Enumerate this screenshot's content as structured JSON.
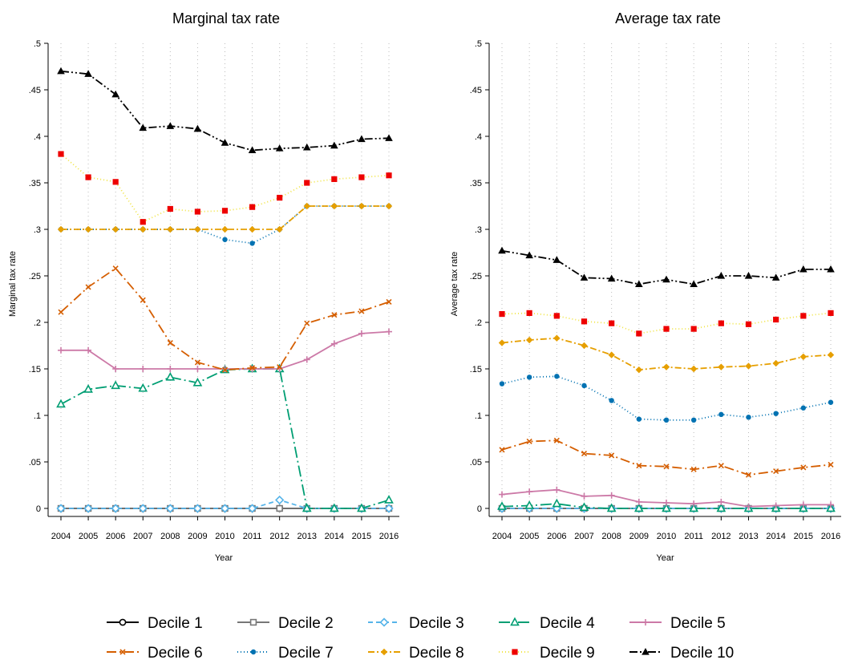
{
  "chart_data": [
    {
      "type": "line",
      "title": "Marginal tax rate",
      "xlabel": "Year",
      "ylabel": "Marginal tax rate",
      "ylim": [
        0,
        0.5
      ],
      "yticks": [
        0,
        0.05,
        0.1,
        0.15,
        0.2,
        0.25,
        0.3,
        0.35,
        0.4,
        0.45,
        0.5
      ],
      "ytick_labels": [
        "0",
        ".05",
        ".1",
        ".15",
        ".2",
        ".25",
        ".3",
        ".35",
        ".4",
        ".45",
        ".5"
      ],
      "x": [
        2004,
        2005,
        2006,
        2007,
        2008,
        2009,
        2010,
        2011,
        2012,
        2013,
        2014,
        2015,
        2016
      ],
      "x_labels": [
        "2004",
        "2005",
        "2006",
        "2007",
        "2008",
        "2009",
        "2010",
        "2011",
        "2012",
        "2013",
        "2014",
        "2015",
        "2016"
      ],
      "grid": "vertical dotted",
      "series": [
        {
          "name": "Decile 1",
          "values": [
            0,
            0,
            0,
            0,
            0,
            0,
            0,
            0,
            0,
            0,
            0,
            0,
            0
          ]
        },
        {
          "name": "Decile 2",
          "values": [
            0,
            0,
            0,
            0,
            0,
            0,
            0,
            0,
            0,
            0,
            0,
            0,
            0
          ]
        },
        {
          "name": "Decile 3",
          "values": [
            0,
            0,
            0,
            0,
            0,
            0,
            0,
            0,
            0.009,
            0,
            0,
            0,
            0
          ]
        },
        {
          "name": "Decile 4",
          "values": [
            0.112,
            0.128,
            0.132,
            0.129,
            0.141,
            0.135,
            0.149,
            0.15,
            0.15,
            0,
            0,
            0,
            0.009
          ]
        },
        {
          "name": "Decile 5",
          "values": [
            0.17,
            0.17,
            0.15,
            0.15,
            0.15,
            0.15,
            0.15,
            0.15,
            0.15,
            0.16,
            0.177,
            0.188,
            0.19
          ]
        },
        {
          "name": "Decile 6",
          "values": [
            0.211,
            0.238,
            0.258,
            0.224,
            0.178,
            0.157,
            0.149,
            0.151,
            0.152,
            0.199,
            0.208,
            0.212,
            0.222
          ]
        },
        {
          "name": "Decile 7",
          "values": [
            0.3,
            0.3,
            0.3,
            0.3,
            0.3,
            0.3,
            0.289,
            0.285,
            0.3,
            0.325,
            0.325,
            0.325,
            0.325
          ]
        },
        {
          "name": "Decile 8",
          "values": [
            0.3,
            0.3,
            0.3,
            0.3,
            0.3,
            0.3,
            0.3,
            0.3,
            0.3,
            0.325,
            0.325,
            0.325,
            0.325
          ]
        },
        {
          "name": "Decile 9",
          "values": [
            0.381,
            0.356,
            0.351,
            0.308,
            0.322,
            0.319,
            0.32,
            0.324,
            0.334,
            0.35,
            0.354,
            0.356,
            0.358
          ]
        },
        {
          "name": "Decile 10",
          "values": [
            0.47,
            0.467,
            0.445,
            0.409,
            0.411,
            0.408,
            0.393,
            0.385,
            0.387,
            0.388,
            0.39,
            0.397,
            0.398
          ]
        }
      ]
    },
    {
      "type": "line",
      "title": "Average tax rate",
      "xlabel": "Year",
      "ylabel": "Average tax rate",
      "ylim": [
        0,
        0.5
      ],
      "yticks": [
        0,
        0.05,
        0.1,
        0.15,
        0.2,
        0.25,
        0.3,
        0.35,
        0.4,
        0.45,
        0.5
      ],
      "ytick_labels": [
        "0",
        ".05",
        ".1",
        ".15",
        ".2",
        ".25",
        ".3",
        ".35",
        ".4",
        ".45",
        ".5"
      ],
      "x": [
        2004,
        2005,
        2006,
        2007,
        2008,
        2009,
        2010,
        2011,
        2012,
        2013,
        2014,
        2015,
        2016
      ],
      "x_labels": [
        "2004",
        "2005",
        "2006",
        "2007",
        "2008",
        "2009",
        "2010",
        "2011",
        "2012",
        "2013",
        "2014",
        "2015",
        "2016"
      ],
      "grid": "vertical dotted",
      "series": [
        {
          "name": "Decile 1",
          "values": [
            0,
            0,
            0,
            0,
            0,
            0,
            0,
            0,
            0,
            0,
            0,
            0,
            0
          ]
        },
        {
          "name": "Decile 2",
          "values": [
            0,
            0,
            0,
            0,
            0,
            0,
            0,
            0,
            0,
            0,
            0,
            0,
            0
          ]
        },
        {
          "name": "Decile 3",
          "values": [
            0,
            0,
            0,
            0,
            0,
            0,
            0,
            0,
            0,
            0,
            0,
            0,
            0
          ]
        },
        {
          "name": "Decile 4",
          "values": [
            0.002,
            0.003,
            0.005,
            0.001,
            0,
            0,
            0,
            0,
            0,
            0,
            0,
            0,
            0
          ]
        },
        {
          "name": "Decile 5",
          "values": [
            0.015,
            0.018,
            0.02,
            0.013,
            0.014,
            0.007,
            0.006,
            0.005,
            0.007,
            0.002,
            0.003,
            0.004,
            0.004
          ]
        },
        {
          "name": "Decile 6",
          "values": [
            0.063,
            0.072,
            0.073,
            0.059,
            0.057,
            0.046,
            0.045,
            0.042,
            0.046,
            0.036,
            0.04,
            0.044,
            0.047
          ]
        },
        {
          "name": "Decile 7",
          "values": [
            0.134,
            0.141,
            0.142,
            0.132,
            0.116,
            0.096,
            0.095,
            0.095,
            0.101,
            0.098,
            0.102,
            0.108,
            0.114
          ]
        },
        {
          "name": "Decile 8",
          "values": [
            0.178,
            0.181,
            0.183,
            0.175,
            0.165,
            0.149,
            0.152,
            0.15,
            0.152,
            0.153,
            0.156,
            0.163,
            0.165
          ]
        },
        {
          "name": "Decile 9",
          "values": [
            0.209,
            0.21,
            0.207,
            0.201,
            0.199,
            0.188,
            0.193,
            0.193,
            0.199,
            0.198,
            0.203,
            0.207,
            0.21
          ]
        },
        {
          "name": "Decile 10",
          "values": [
            0.277,
            0.272,
            0.267,
            0.248,
            0.247,
            0.241,
            0.246,
            0.241,
            0.25,
            0.25,
            0.248,
            0.257,
            0.257
          ]
        }
      ]
    }
  ],
  "series_styles": [
    {
      "color": "#000000",
      "dash": "",
      "marker": "circle-hollow"
    },
    {
      "color": "#777777",
      "dash": "",
      "marker": "square-hollow"
    },
    {
      "color": "#56b4e9",
      "dash": "6 4",
      "marker": "diamond-hollow"
    },
    {
      "color": "#009e73",
      "dash": "14 4 2 4",
      "marker": "triangle-hollow"
    },
    {
      "color": "#cc79a7",
      "dash": "",
      "marker": "plus"
    },
    {
      "color": "#d55e00",
      "dash": "12 4 2 4",
      "marker": "cross"
    },
    {
      "color": "#0072b2",
      "dash": "1 3",
      "marker": "dot"
    },
    {
      "color": "#e69f00",
      "dash": "8 3 2 3",
      "marker": "diamond"
    },
    {
      "color": "#f0e442",
      "dash": "1 3",
      "marker": "square",
      "marker_color": "#ee0000"
    },
    {
      "color": "#000000",
      "dash": "10 3 2 3 2 3",
      "marker": "triangle"
    }
  ]
}
